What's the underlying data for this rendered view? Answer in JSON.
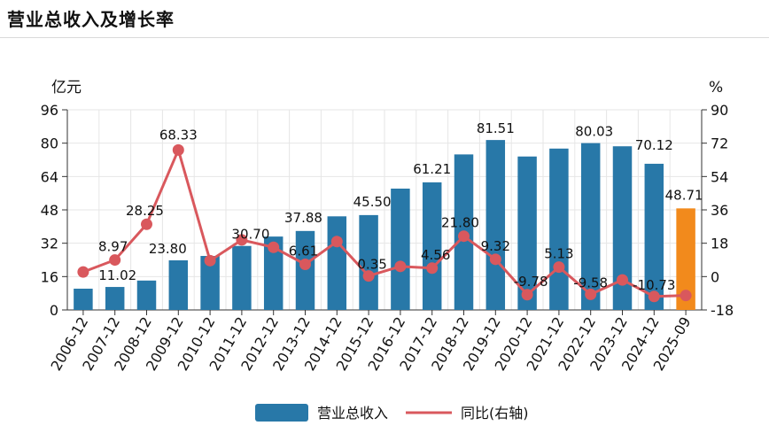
{
  "page": {
    "title": "营业总收入及增长率"
  },
  "chart_data": {
    "type": "bar",
    "title": "营业总收入及增长率",
    "categories": [
      "2006-12",
      "2007-12",
      "2008-12",
      "2009-12",
      "2010-12",
      "2011-12",
      "2012-12",
      "2013-12",
      "2014-12",
      "2015-12",
      "2016-12",
      "2017-12",
      "2018-12",
      "2019-12",
      "2020-12",
      "2021-12",
      "2022-12",
      "2023-12",
      "2024-12",
      "2025-09"
    ],
    "series": [
      {
        "name": "营业总收入",
        "type": "bar",
        "axis": "left",
        "color": "#2878a8",
        "highlight_color": "#f28a1c",
        "values": [
          10.2,
          11.02,
          14.1,
          23.8,
          25.9,
          30.7,
          35.2,
          37.88,
          44.9,
          45.5,
          58.2,
          61.21,
          74.6,
          81.51,
          73.6,
          77.4,
          80.03,
          78.5,
          70.12,
          48.71
        ]
      },
      {
        "name": "同比(右轴)",
        "type": "line",
        "axis": "right",
        "color": "#d9585d",
        "values": [
          2.5,
          8.97,
          28.25,
          68.33,
          8.6,
          19.8,
          15.8,
          6.61,
          18.9,
          0.35,
          5.5,
          4.56,
          21.8,
          9.32,
          -9.78,
          5.13,
          -9.58,
          -1.8,
          -10.73,
          -10.2
        ]
      }
    ],
    "labels": [
      {
        "index": 1,
        "text": "11.02"
      },
      {
        "index": 2,
        "text": "28.25"
      },
      {
        "index": 1,
        "text": "8.97"
      },
      {
        "index": 3,
        "text": "68.33"
      },
      {
        "index": 3,
        "text": "23.80"
      },
      {
        "index": 5,
        "text": "30.70"
      },
      {
        "index": 7,
        "text": "37.88"
      },
      {
        "index": 7,
        "text": "6.61"
      },
      {
        "index": 9,
        "text": "45.50"
      },
      {
        "index": 9,
        "text": "0.35"
      },
      {
        "index": 11,
        "text": "61.21"
      },
      {
        "index": 11,
        "text": "4.56"
      },
      {
        "index": 12,
        "text": "21.80"
      },
      {
        "index": 13,
        "text": "81.51"
      },
      {
        "index": 13,
        "text": "9.32"
      },
      {
        "index": 14,
        "text": "-9.78"
      },
      {
        "index": 15,
        "text": "5.13"
      },
      {
        "index": 16,
        "text": "80.03"
      },
      {
        "index": 16,
        "text": "-9.58"
      },
      {
        "index": 18,
        "text": "70.12"
      },
      {
        "index": 18,
        "text": "-10.73"
      },
      {
        "index": 19,
        "text": "48.71"
      }
    ],
    "left_axis": {
      "unit": "亿元",
      "min": 0,
      "max": 96,
      "ticks": [
        "0",
        "16",
        "32",
        "48",
        "64",
        "80",
        "96"
      ]
    },
    "right_axis": {
      "unit": "%",
      "min": -18,
      "max": 90,
      "ticks": [
        "-18",
        "0",
        "18",
        "36",
        "54",
        "72",
        "90"
      ]
    },
    "grid": true,
    "legend_position": "bottom"
  }
}
